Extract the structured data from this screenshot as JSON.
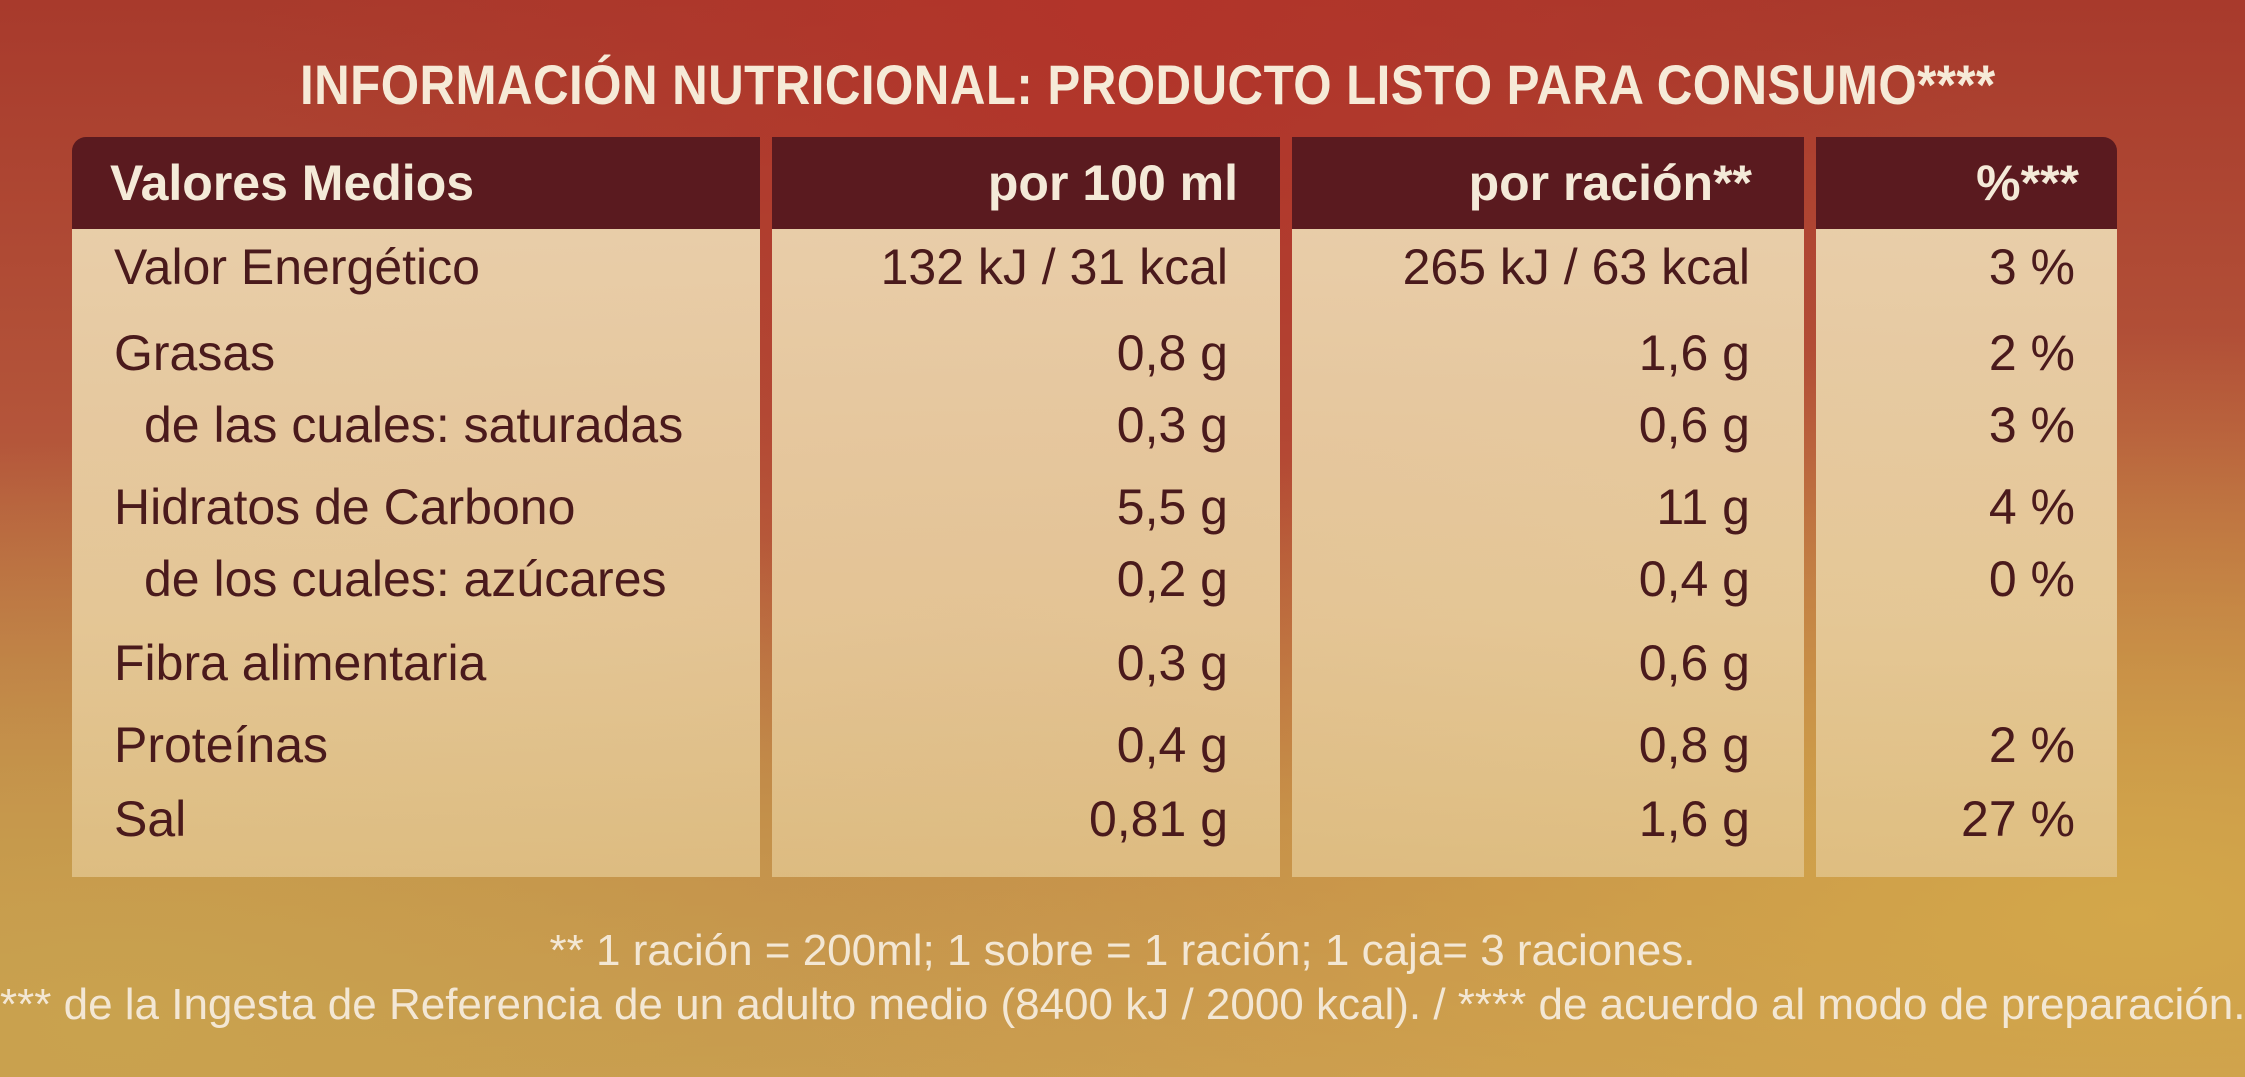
{
  "title": "INFORMACIÓN NUTRICIONAL: PRODUCTO LISTO PARA CONSUMO****",
  "table": {
    "headers": [
      "Valores Medios",
      "por 100 ml",
      "por ración**",
      "%***"
    ],
    "rows": [
      {
        "name": "Valor Energético",
        "per100": "132 kJ / 31 kcal",
        "perServing": "265 kJ / 63 kcal",
        "pct": "3 %"
      },
      {
        "name": "Grasas",
        "per100": "0,8 g",
        "perServing": "1,6 g",
        "pct": "2 %"
      },
      {
        "name": "de las cuales: saturadas",
        "per100": "0,3 g",
        "perServing": "0,6 g",
        "pct": "3 %"
      },
      {
        "name": "Hidratos de Carbono",
        "per100": "5,5 g",
        "perServing": "11 g",
        "pct": "4 %"
      },
      {
        "name": "de los cuales: azúcares",
        "per100": "0,2 g",
        "perServing": "0,4 g",
        "pct": "0 %"
      },
      {
        "name": "Fibra alimentaria",
        "per100": "0,3 g",
        "perServing": "0,6 g",
        "pct": ""
      },
      {
        "name": "Proteínas",
        "per100": "0,4 g",
        "perServing": "0,8 g",
        "pct": "2 %"
      },
      {
        "name": "Sal",
        "per100": "0,81 g",
        "perServing": "1,6 g",
        "pct": "27 %"
      }
    ]
  },
  "footnotes": {
    "line1": "** 1 ración = 200ml;  1 sobre = 1 ración;  1 caja= 3 raciones.",
    "line2": "*** de la Ingesta de Referencia de un adulto medio (8400 kJ / 2000 kcal). / **** de acuerdo al modo de preparación."
  },
  "colors": {
    "header_bg": "#5a1a1f",
    "cell_bg": "#ecd6b0",
    "cell_text": "#4a1a1c",
    "light_text": "#f6ead7"
  }
}
